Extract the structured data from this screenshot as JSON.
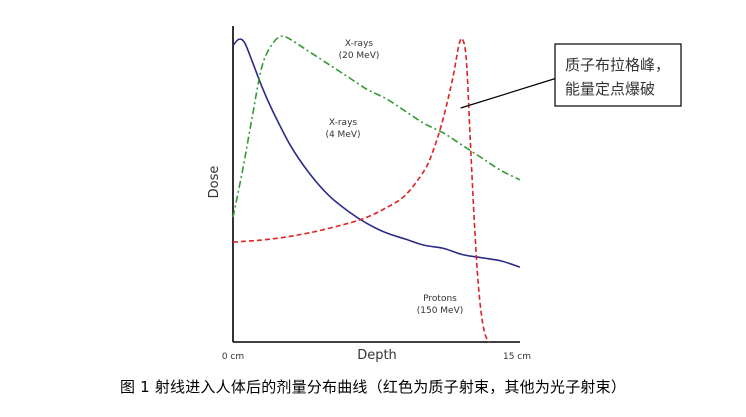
{
  "chart_data": {
    "type": "line",
    "title": "",
    "xlabel": "Depth",
    "ylabel": "Dose",
    "x_tick_labels": [
      "0 cm",
      "15 cm"
    ],
    "xlim": [
      0,
      15
    ],
    "ylim": [
      0,
      100
    ],
    "grid": false,
    "legend": "none",
    "series": [
      {
        "name": "X-rays (4 MeV)",
        "label_lines": [
          "X-rays",
          "(4 MeV)"
        ],
        "color": "#2b2b88",
        "style": "solid",
        "x": [
          0,
          0.3,
          0.6,
          1,
          1.5,
          2,
          3,
          4,
          5,
          6,
          7,
          8,
          9,
          10,
          11,
          12,
          13,
          14,
          15
        ],
        "y": [
          95,
          97,
          96,
          90,
          82,
          75,
          63,
          54,
          47,
          42,
          38,
          35,
          33,
          31,
          30,
          28,
          27,
          26,
          24
        ]
      },
      {
        "name": "X-rays (20 MeV)",
        "label_lines": [
          "X-rays",
          "(20 MeV)"
        ],
        "color": "#339933",
        "style": "dashdot",
        "x": [
          0,
          0.5,
          1,
          1.5,
          2,
          2.5,
          3,
          3.5,
          4,
          5,
          6,
          7,
          8,
          9,
          10,
          11,
          12,
          13,
          14,
          15
        ],
        "y": [
          40,
          55,
          72,
          88,
          95,
          98,
          97,
          95,
          93,
          89,
          85,
          81,
          78,
          74,
          70,
          67,
          63,
          59,
          55,
          52
        ]
      },
      {
        "name": "Protons (150 MeV)",
        "label_lines": [
          "Protons",
          "(150 MeV)"
        ],
        "color": "#dd2222",
        "style": "dashed",
        "x": [
          0,
          2,
          4,
          6,
          7,
          8,
          9,
          10,
          10.5,
          11,
          11.5,
          11.8,
          12,
          12.2,
          12.4,
          12.6,
          12.8,
          13,
          13.2,
          13.4
        ],
        "y": [
          32,
          33,
          35,
          38,
          40,
          43,
          47,
          55,
          62,
          72,
          85,
          95,
          97,
          90,
          65,
          40,
          20,
          8,
          2,
          0
        ]
      }
    ],
    "annotation": {
      "text_lines": [
        "质子布拉格峰，",
        "能量定点爆破"
      ],
      "points_to": [
        11.9,
        75
      ]
    },
    "caption": "图 1  射线进入人体后的剂量分布曲线（红色为质子射束，其他为光子射束）"
  }
}
